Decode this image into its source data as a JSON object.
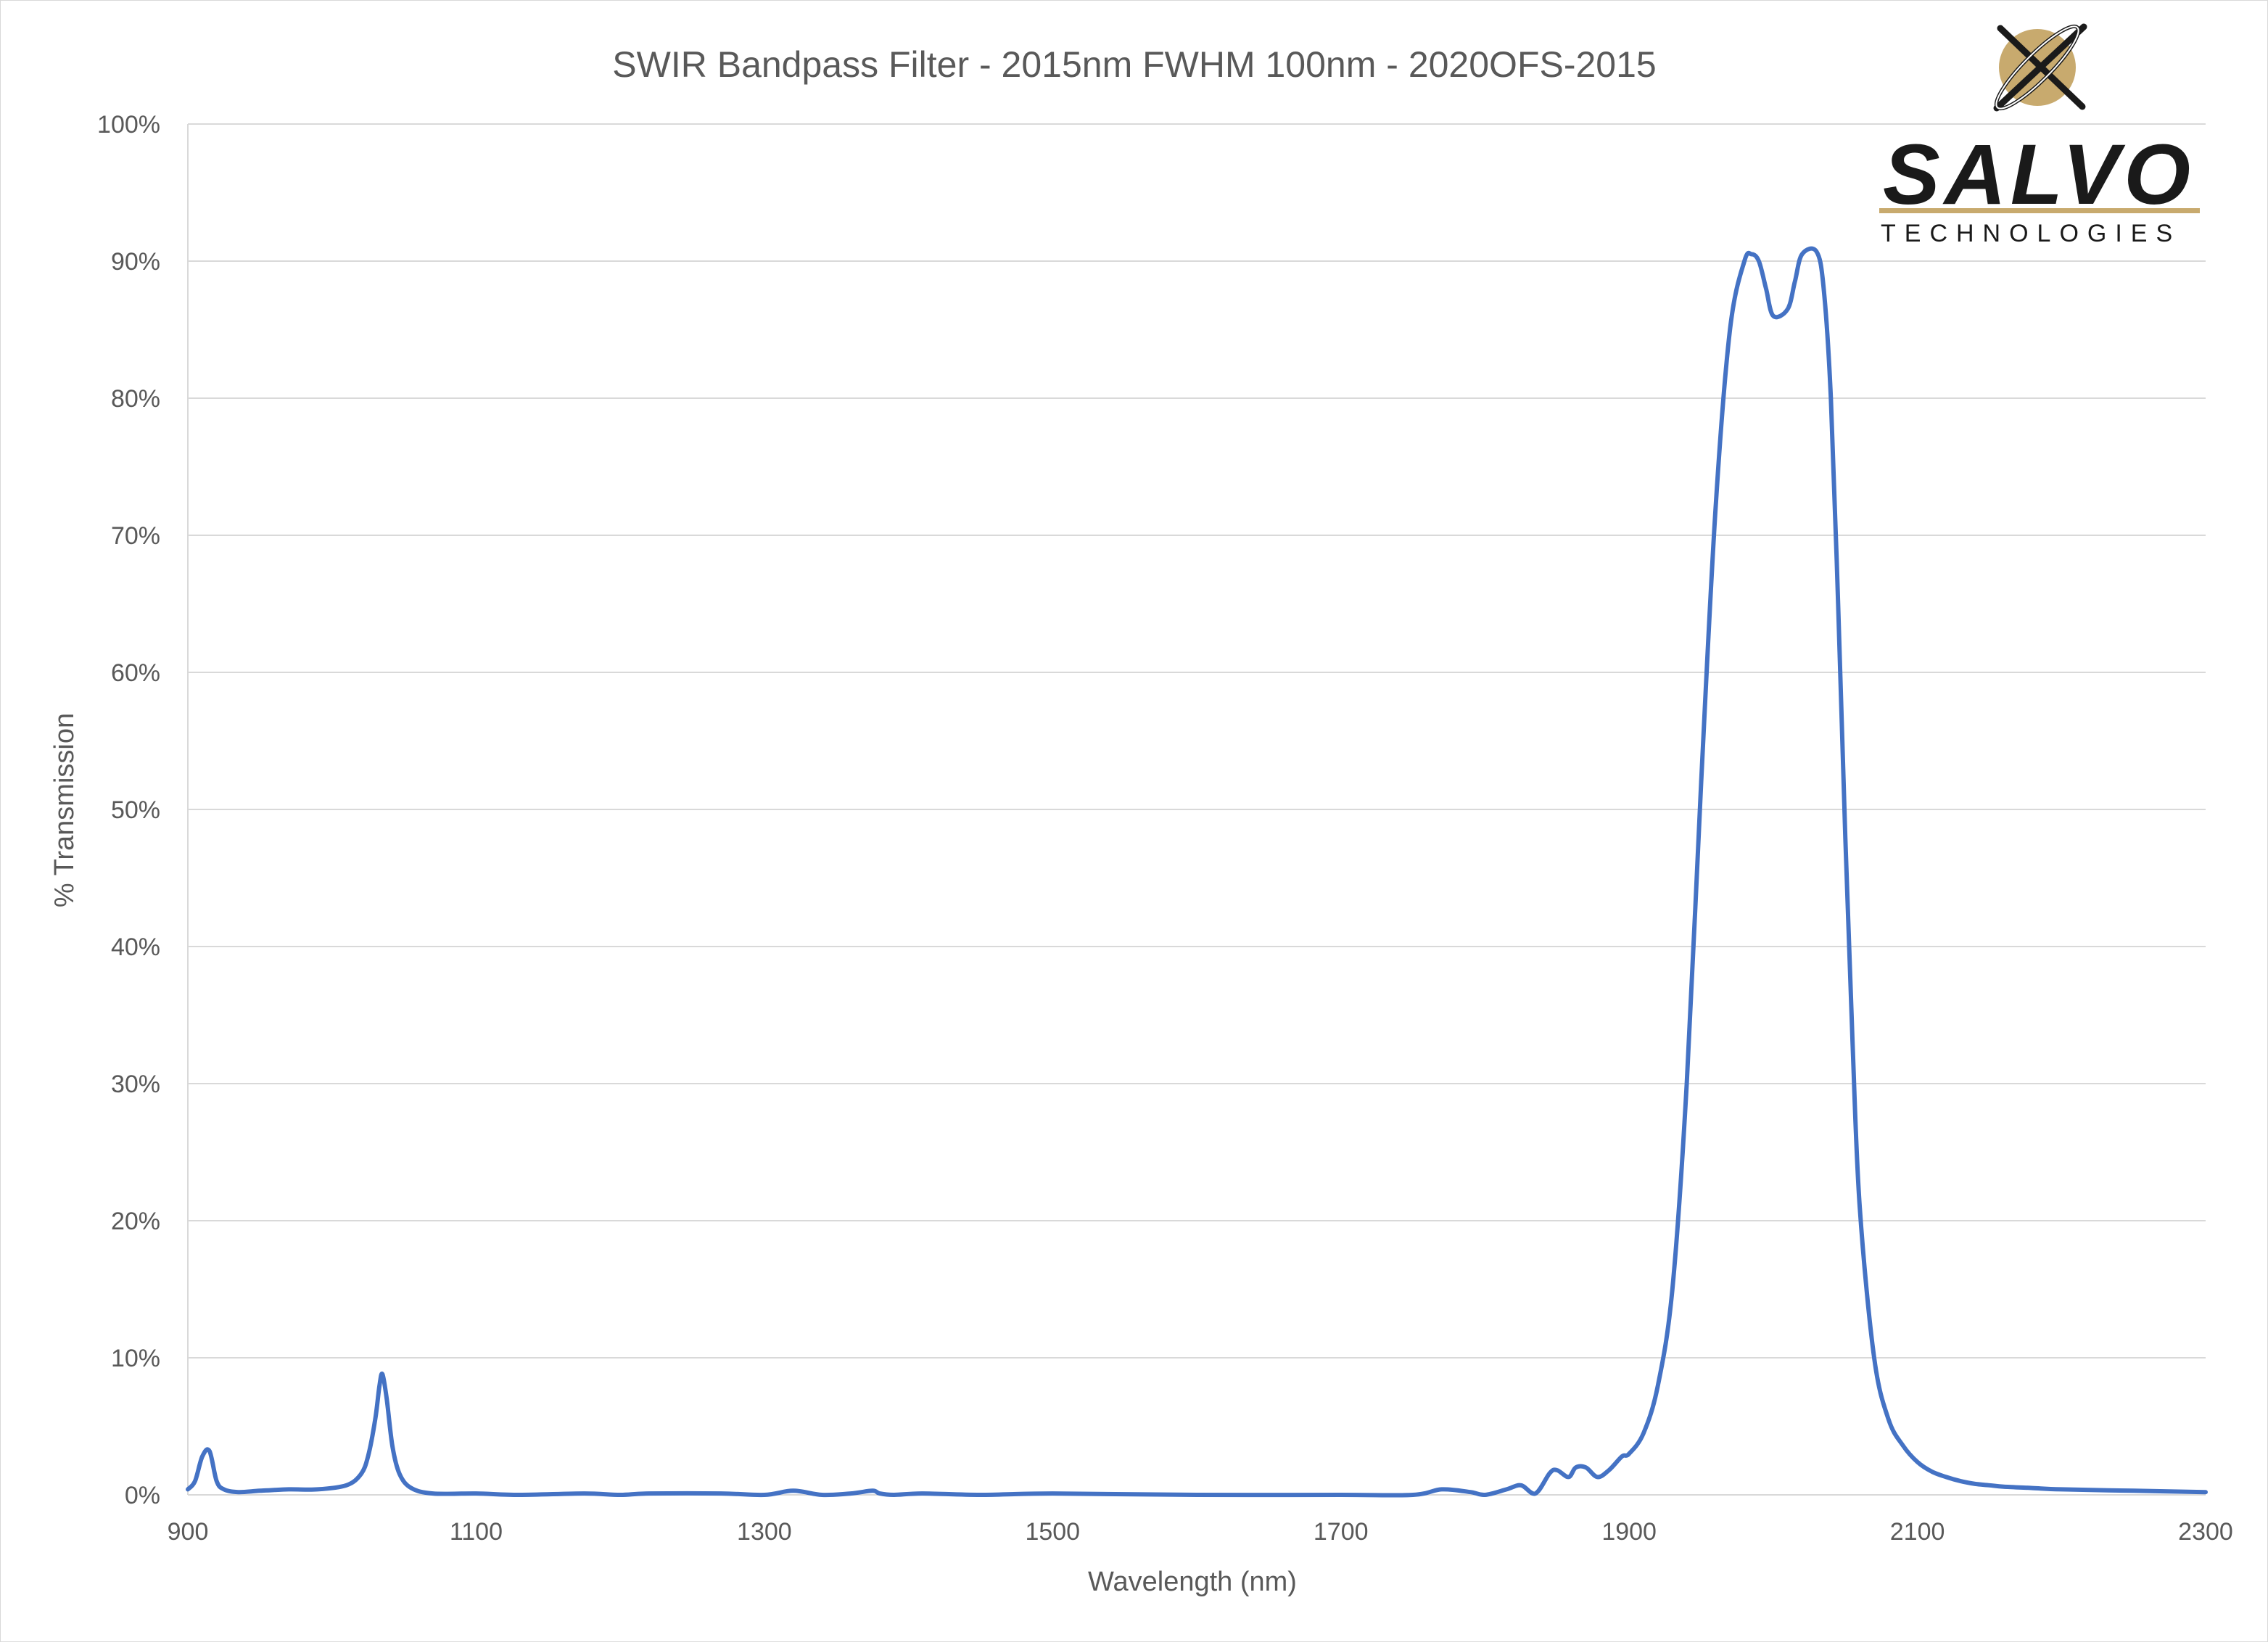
{
  "chart_data": {
    "type": "line",
    "title": "SWIR Bandpass Filter - 2015nm FWHM 100nm - 2020OFS-2015",
    "xlabel": "Wavelength (nm)",
    "ylabel": "% Transmission",
    "xlim": [
      900,
      2300
    ],
    "ylim": [
      0,
      100
    ],
    "x_ticks": [
      "900",
      "1100",
      "1300",
      "1500",
      "1700",
      "1900",
      "2100",
      "2300"
    ],
    "y_ticks": [
      "0%",
      "10%",
      "20%",
      "30%",
      "40%",
      "50%",
      "60%",
      "70%",
      "80%",
      "90%",
      "100%"
    ],
    "grid": "horizontal",
    "legend": "none",
    "series_color": "#4472c4",
    "series": [
      {
        "x": [
          900,
          905,
          910,
          915,
          920,
          925,
          935,
          950,
          970,
          990,
          1010,
          1020,
          1025,
          1030,
          1033,
          1035,
          1038,
          1042,
          1047,
          1055,
          1070,
          1100,
          1130,
          1175,
          1200,
          1220,
          1270,
          1300,
          1320,
          1340,
          1360,
          1375,
          1380,
          1390,
          1410,
          1450,
          1500,
          1600,
          1700,
          1750,
          1770,
          1790,
          1800,
          1815,
          1825,
          1835,
          1845,
          1850,
          1858,
          1863,
          1870,
          1878,
          1886,
          1895,
          1900,
          1910,
          1920,
          1930,
          1940,
          1950,
          1960,
          1970,
          1980,
          1985,
          1990,
          1995,
          2000,
          2010,
          2015,
          2020,
          2030,
          2035,
          2040,
          2045,
          2050,
          2055,
          2060,
          2070,
          2080,
          2090,
          2100,
          2110,
          2120,
          2130,
          2140,
          2150,
          2160,
          2180,
          2200,
          2250,
          2300
        ],
        "y": [
          0.4,
          1.0,
          2.8,
          3.2,
          1.0,
          0.4,
          0.2,
          0.3,
          0.4,
          0.4,
          0.7,
          1.5,
          2.8,
          5.5,
          8.0,
          8.8,
          7.0,
          3.5,
          1.5,
          0.5,
          0.1,
          0.1,
          0.0,
          0.1,
          0.0,
          0.1,
          0.1,
          0.0,
          0.3,
          0.0,
          0.1,
          0.3,
          0.1,
          0.0,
          0.1,
          0.0,
          0.1,
          0.0,
          0.0,
          0.0,
          0.4,
          0.2,
          0.0,
          0.4,
          0.7,
          0.1,
          1.6,
          1.8,
          1.3,
          2.0,
          2.0,
          1.3,
          1.8,
          2.8,
          3.0,
          4.5,
          8.0,
          15.0,
          30.0,
          52.0,
          72.0,
          85.0,
          90.0,
          90.5,
          90.0,
          88.0,
          86.0,
          86.5,
          88.5,
          90.5,
          90.7,
          88.0,
          80.0,
          65.0,
          48.0,
          33.0,
          21.0,
          10.0,
          5.5,
          3.6,
          2.4,
          1.7,
          1.3,
          1.0,
          0.8,
          0.7,
          0.6,
          0.5,
          0.4,
          0.3,
          0.2
        ]
      }
    ]
  },
  "logo": {
    "word": "SALVO",
    "subtitle": "TECHNOLOGIES",
    "colors": {
      "gold": "#c8aa6e",
      "dark": "#1a1a1a"
    }
  }
}
